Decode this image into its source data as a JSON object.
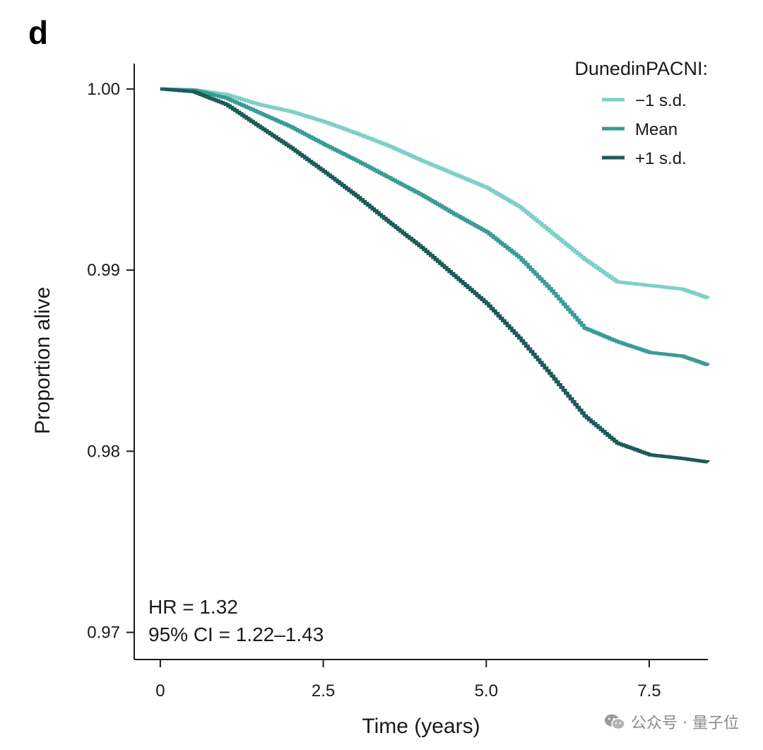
{
  "panel_label": "d",
  "chart_data": {
    "type": "line",
    "title": "",
    "xlabel": "Time (years)",
    "ylabel": "Proportion alive",
    "xlim": [
      -0.4,
      8.4
    ],
    "ylim": [
      0.9685,
      1.0014
    ],
    "xticks": [
      0,
      2.5,
      5.0,
      7.5
    ],
    "xtick_labels": [
      "0",
      "2.5",
      "5.0",
      "7.5"
    ],
    "yticks": [
      1.0,
      0.99,
      0.98,
      0.97
    ],
    "ytick_labels": [
      "1.00",
      "0.99",
      "0.98",
      "0.97"
    ],
    "legend_title": "DunedinPACNI:",
    "legend_position": "top-right",
    "series": [
      {
        "name": "−1 s.d.",
        "color": "#7fcfc6",
        "x": [
          0,
          0.5,
          1.0,
          1.5,
          2.0,
          2.5,
          3.0,
          3.5,
          4.0,
          4.5,
          5.0,
          5.5,
          6.0,
          6.5,
          7.0,
          7.5,
          8.0,
          8.4
        ],
        "y": [
          1.0,
          0.99995,
          0.9997,
          0.99915,
          0.99875,
          0.9982,
          0.99755,
          0.99685,
          0.99605,
          0.9953,
          0.99455,
          0.9935,
          0.99205,
          0.9906,
          0.98935,
          0.98915,
          0.98895,
          0.98845
        ]
      },
      {
        "name": "Mean",
        "color": "#3a9c94",
        "x": [
          0,
          0.5,
          1.0,
          1.5,
          2.0,
          2.5,
          3.0,
          3.5,
          4.0,
          4.5,
          5.0,
          5.5,
          6.0,
          6.5,
          7.0,
          7.5,
          8.0,
          8.4
        ],
        "y": [
          1.0,
          0.99995,
          0.9995,
          0.9987,
          0.9979,
          0.99695,
          0.99605,
          0.9951,
          0.99415,
          0.9931,
          0.9921,
          0.9907,
          0.98885,
          0.9868,
          0.98605,
          0.98545,
          0.98525,
          0.98475
        ]
      },
      {
        "name": "+1 s.d.",
        "color": "#1d5b57",
        "x": [
          0,
          0.5,
          1.0,
          1.5,
          2.0,
          2.5,
          3.0,
          3.5,
          4.0,
          4.5,
          5.0,
          5.5,
          6.0,
          6.5,
          7.0,
          7.5,
          8.0,
          8.4
        ],
        "y": [
          1.0,
          0.99985,
          0.99915,
          0.99795,
          0.99675,
          0.99545,
          0.9941,
          0.99265,
          0.99125,
          0.9897,
          0.98815,
          0.98625,
          0.98415,
          0.98195,
          0.98045,
          0.9798,
          0.9796,
          0.9794
        ]
      }
    ],
    "annotations": [
      "HR = 1.32",
      "95% CI = 1.22–1.43"
    ]
  },
  "watermark": {
    "text": "公众号 · 量子位",
    "icon": "wechat-icon"
  }
}
